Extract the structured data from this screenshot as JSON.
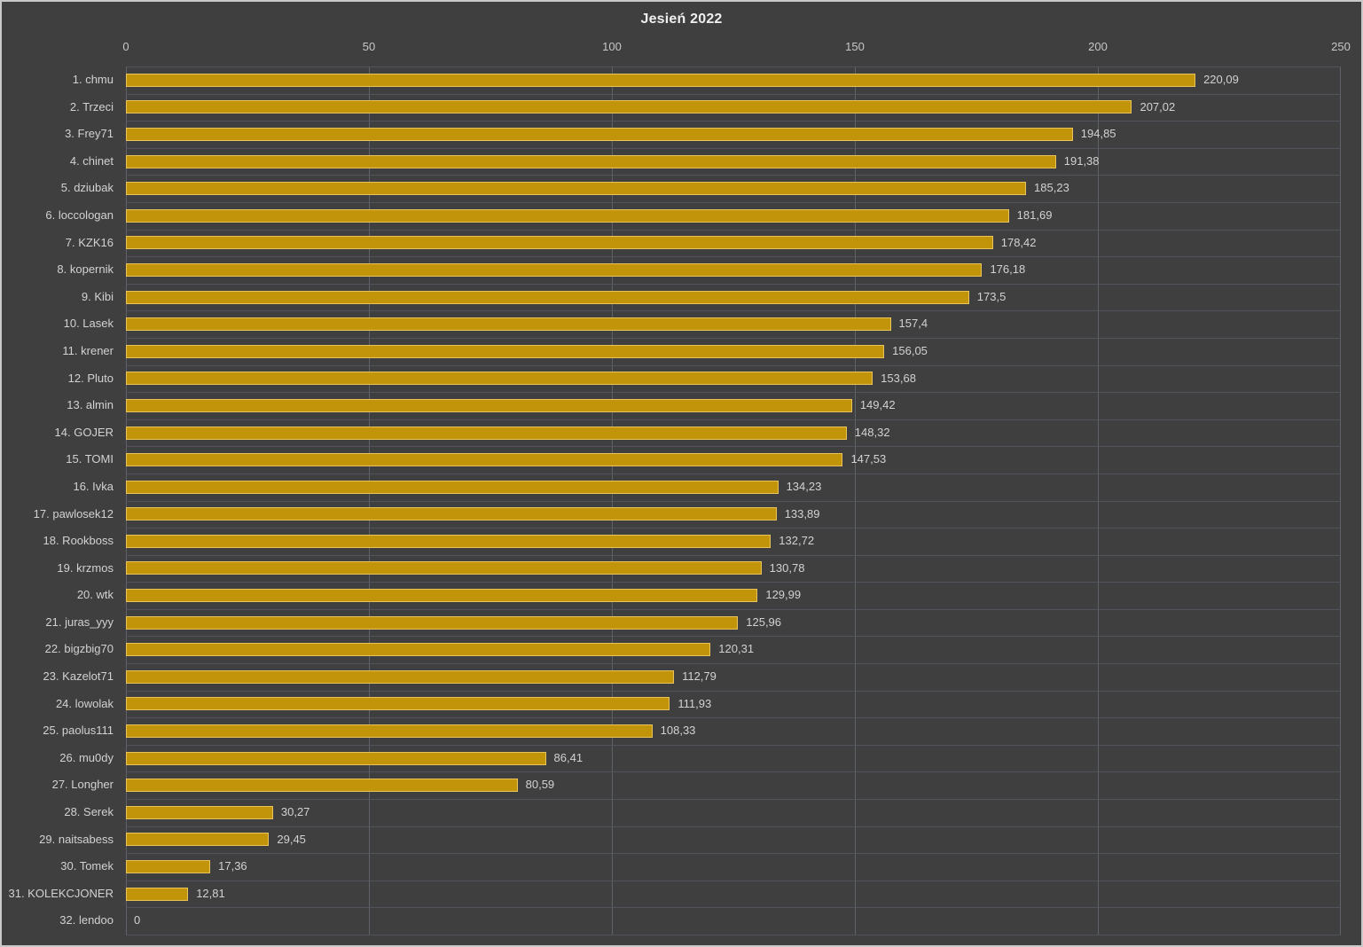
{
  "chart_data": {
    "type": "bar",
    "orientation": "horizontal",
    "title": "Jesień 2022",
    "xlabel": "",
    "ylabel": "",
    "xlim": [
      0,
      250
    ],
    "ticks": [
      0,
      50,
      100,
      150,
      200,
      250
    ],
    "tick_labels": [
      "0",
      "50",
      "100",
      "150",
      "200",
      "250"
    ],
    "grid": "vertical-major-and-row-separators",
    "legend": "none",
    "categories": [
      "1. chmu",
      "2. Trzeci",
      "3. Frey71",
      "4. chinet",
      "5. dziubak",
      "6. loccologan",
      "7. KZK16",
      "8. kopernik",
      "9. Kibi",
      "10. Lasek",
      "11. krener",
      "12. Pluto",
      "13. almin",
      "14. GOJER",
      "15. TOMI",
      "16. Ivka",
      "17. pawlosek12",
      "18. Rookboss",
      "19. krzmos",
      "20. wtk",
      "21. juras_yyy",
      "22. bigzbig70",
      "23. Kazelot71",
      "24. lowolak",
      "25. paolus111",
      "26. mu0dy",
      "27. Longher",
      "28. Serek",
      "29. naitsabess",
      "30. Tomek",
      "31. KOLEKCJONER",
      "32. lendoo"
    ],
    "values": [
      220.09,
      207.02,
      194.85,
      191.38,
      185.23,
      181.69,
      178.42,
      176.18,
      173.5,
      157.4,
      156.05,
      153.68,
      149.42,
      148.32,
      147.53,
      134.23,
      133.89,
      132.72,
      130.78,
      129.99,
      125.96,
      120.31,
      112.79,
      111.93,
      108.33,
      86.41,
      80.59,
      30.27,
      29.45,
      17.36,
      12.81,
      0
    ],
    "value_labels": [
      "220,09",
      "207,02",
      "194,85",
      "191,38",
      "185,23",
      "181,69",
      "178,42",
      "176,18",
      "173,5",
      "157,4",
      "156,05",
      "153,68",
      "149,42",
      "148,32",
      "147,53",
      "134,23",
      "133,89",
      "132,72",
      "130,78",
      "129,99",
      "125,96",
      "120,31",
      "112,79",
      "111,93",
      "108,33",
      "86,41",
      "80,59",
      "30,27",
      "29,45",
      "17,36",
      "12,81",
      "0"
    ],
    "colors": {
      "background": "#3F3F3F",
      "bar_fill": "#C2940A",
      "bar_border": "#E9C45A",
      "grid_vertical": "#6A707A",
      "grid_horizontal": "#565B63",
      "title_text": "#EFEFEF",
      "label_text": "#D2D2D2",
      "tick_text": "#C7C7C7",
      "frame_border": "#C9C9C9"
    }
  }
}
